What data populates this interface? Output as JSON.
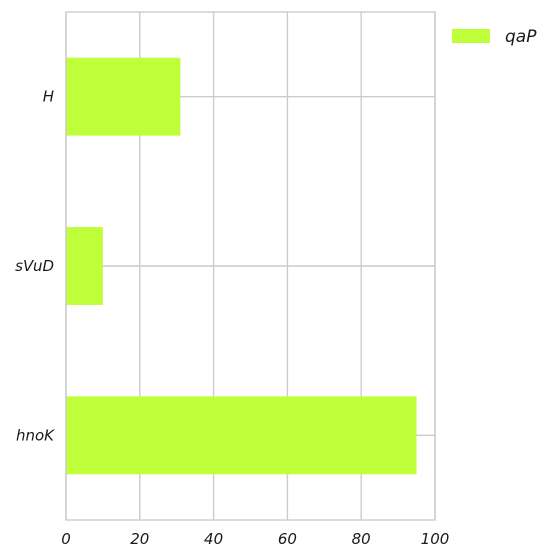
{
  "chart_data": {
    "type": "bar",
    "orientation": "horizontal",
    "categories": [
      "H",
      "sVuD",
      "hnoK"
    ],
    "series": [
      {
        "name": "qaP",
        "values": [
          31,
          10,
          95
        ]
      }
    ],
    "xlim": [
      0,
      100
    ],
    "xticks": [
      0,
      20,
      40,
      60,
      80,
      100
    ],
    "grid": true,
    "legend": "top-right",
    "colors": {
      "bar": "#bfff3a",
      "grid": "#cccccc",
      "axis": "#cccccc"
    }
  }
}
